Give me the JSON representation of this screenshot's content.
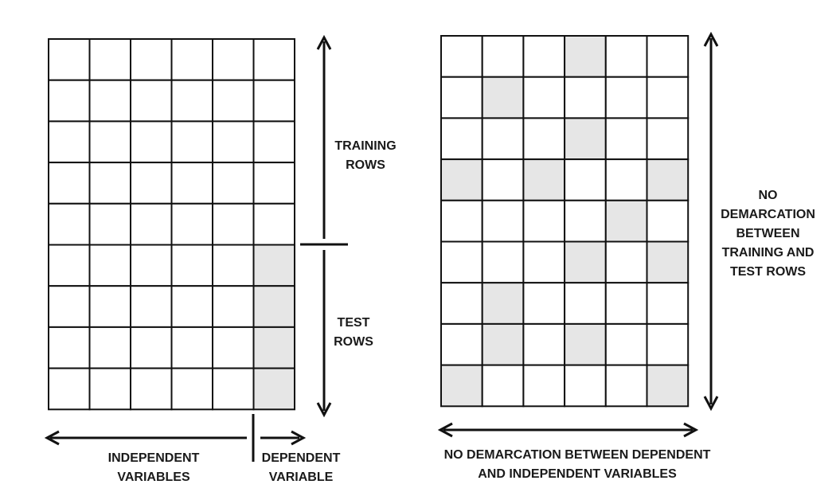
{
  "left_grid": {
    "rows": 9,
    "cols": 6,
    "shaded": [
      [
        5,
        5
      ],
      [
        6,
        5
      ],
      [
        7,
        5
      ],
      [
        8,
        5
      ]
    ]
  },
  "right_grid": {
    "rows": 9,
    "cols": 6,
    "shaded": [
      [
        0,
        3
      ],
      [
        1,
        1
      ],
      [
        2,
        3
      ],
      [
        3,
        0
      ],
      [
        3,
        2
      ],
      [
        3,
        5
      ],
      [
        4,
        4
      ],
      [
        5,
        3
      ],
      [
        5,
        5
      ],
      [
        6,
        1
      ],
      [
        7,
        1
      ],
      [
        7,
        3
      ],
      [
        8,
        0
      ],
      [
        8,
        5
      ]
    ]
  },
  "colors": {
    "line": "#111111",
    "shade": "#e6e6e6",
    "text": "#1a1a1a"
  },
  "labels": {
    "training_rows": [
      "TRAINING",
      "ROWS"
    ],
    "test_rows": [
      "TEST",
      "ROWS"
    ],
    "independent_variables": [
      "INDEPENDENT",
      "VARIABLES"
    ],
    "dependent_variable": [
      "DEPENDENT",
      "VARIABLE"
    ],
    "no_row_demarcation": [
      "NO",
      "DEMARCATION",
      "BETWEEN",
      "TRAINING AND",
      "TEST ROWS"
    ],
    "no_variable_demarcation": [
      "NO DEMARCATION BETWEEN DEPENDENT",
      "AND INDEPENDENT VARIABLES"
    ]
  }
}
